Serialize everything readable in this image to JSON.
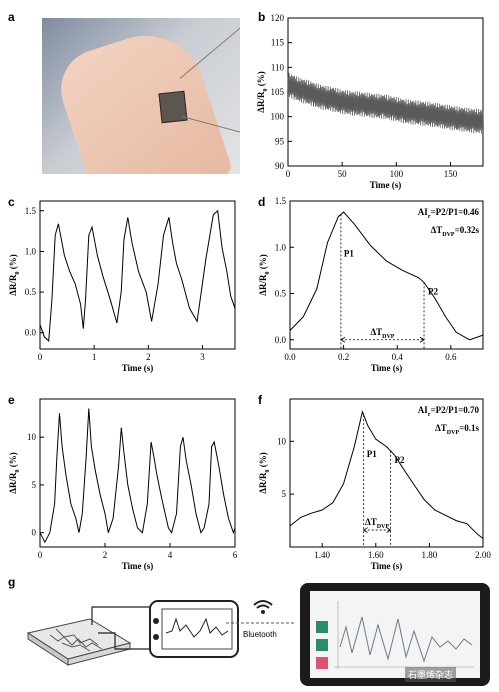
{
  "panel_labels": {
    "a": "a",
    "b": "b",
    "c": "c",
    "d": "d",
    "e": "e",
    "f": "f",
    "g": "g"
  },
  "ylabel_text": "ΔR/R",
  "ylabel_sub": "0",
  "ylabel_unit": " (%)",
  "bluetooth_label": "Bluetooth",
  "watermark": "石墨烯杂志",
  "colors": {
    "trace": "#000000",
    "trace_b": "#5a5a5a",
    "phone": "#1b1b1b",
    "app_green": "#2e8b6a",
    "app_pink": "#e05070"
  },
  "icons": [
    "wifi-icon"
  ],
  "chart_data": [
    {
      "id": "b",
      "type": "line",
      "title": "",
      "xlabel": "Time (s)",
      "xlim": [
        0,
        180
      ],
      "xticks": [
        0,
        50,
        100,
        150
      ],
      "ylim": [
        90,
        120
      ],
      "yticks": [
        90,
        95,
        100,
        105,
        110,
        115,
        120
      ],
      "series": [
        {
          "x": [
            0,
            10,
            20,
            30,
            40,
            50,
            60,
            70,
            80,
            90,
            100,
            110,
            120,
            130,
            140,
            150,
            160,
            170,
            180
          ],
          "y_center": [
            106.5,
            105.5,
            104.8,
            104.0,
            103.6,
            103.0,
            102.7,
            102.5,
            102.2,
            102.0,
            101.5,
            101.0,
            100.8,
            100.5,
            100.2,
            99.8,
            99.5,
            99.2,
            99.0
          ],
          "amplitude": 2.5
        }
      ]
    },
    {
      "id": "c",
      "type": "line",
      "title": "",
      "xlabel": "Time (s)",
      "xlim": [
        0,
        3.6
      ],
      "xticks": [
        0,
        1,
        2,
        3
      ],
      "ylim": [
        -0.2,
        1.62
      ],
      "yticks": [
        0.0,
        0.5,
        1.0,
        1.5
      ],
      "series": [
        {
          "x": [
            0,
            0.08,
            0.16,
            0.22,
            0.28,
            0.34,
            0.45,
            0.55,
            0.65,
            0.75,
            0.8,
            0.84,
            0.9,
            0.96,
            1.06,
            1.16,
            1.3,
            1.42,
            1.5,
            1.55,
            1.62,
            1.7,
            1.82,
            1.96,
            2.06,
            2.18,
            2.28,
            2.38,
            2.45,
            2.52,
            2.62,
            2.76,
            2.9,
            3.06,
            3.2,
            3.28,
            3.36,
            3.45,
            3.52,
            3.6
          ],
          "y": [
            0.1,
            -0.05,
            -0.1,
            0.4,
            1.2,
            1.34,
            0.95,
            0.75,
            0.6,
            0.35,
            0.05,
            0.4,
            1.2,
            1.3,
            0.95,
            0.7,
            0.4,
            0.12,
            0.5,
            1.15,
            1.42,
            1.1,
            0.75,
            0.5,
            0.14,
            0.6,
            1.2,
            1.42,
            1.1,
            0.85,
            0.65,
            0.3,
            0.14,
            0.9,
            1.45,
            1.5,
            1.05,
            0.75,
            0.45,
            0.3
          ]
        }
      ]
    },
    {
      "id": "d",
      "type": "line",
      "title": "",
      "xlabel": "Time (s)",
      "xlim": [
        0,
        0.72
      ],
      "xticks": [
        0.0,
        0.2,
        0.4,
        0.6
      ],
      "ylim": [
        -0.1,
        1.5
      ],
      "yticks": [
        0.0,
        0.5,
        1.0,
        1.5
      ],
      "series": [
        {
          "x": [
            0.0,
            0.05,
            0.1,
            0.14,
            0.18,
            0.2,
            0.24,
            0.3,
            0.36,
            0.42,
            0.48,
            0.5,
            0.54,
            0.58,
            0.62,
            0.67,
            0.72
          ],
          "y": [
            0.1,
            0.25,
            0.55,
            1.05,
            1.33,
            1.38,
            1.25,
            1.02,
            0.85,
            0.75,
            0.67,
            0.62,
            0.45,
            0.25,
            0.08,
            0.0,
            0.05
          ]
        }
      ],
      "annotations": {
        "air_label": "AI",
        "air_sub": "r",
        "air_value": "=P2/P1=0.46",
        "dt_label": "ΔT",
        "dt_sub": "DVP",
        "dt_value": "=0.32s",
        "p1": "P1",
        "p2": "P2",
        "p1_x": 0.19,
        "p2_x": 0.5,
        "arrow_y": 0.0,
        "dtvp_label": "ΔT",
        "dtvp_sub": "DVP"
      }
    },
    {
      "id": "e",
      "type": "line",
      "title": "",
      "xlabel": "Time (s)",
      "xlim": [
        0,
        6
      ],
      "xticks": [
        0,
        2,
        4,
        6
      ],
      "ylim": [
        -1.5,
        14
      ],
      "yticks": [
        0,
        5,
        10
      ],
      "series": [
        {
          "x": [
            0,
            0.15,
            0.3,
            0.45,
            0.52,
            0.6,
            0.68,
            0.8,
            0.95,
            1.1,
            1.2,
            1.3,
            1.42,
            1.5,
            1.58,
            1.7,
            1.85,
            2.0,
            2.1,
            2.25,
            2.42,
            2.5,
            2.58,
            2.7,
            2.85,
            3.0,
            3.15,
            3.3,
            3.42,
            3.5,
            3.6,
            3.75,
            3.95,
            4.05,
            4.2,
            4.32,
            4.4,
            4.5,
            4.65,
            4.8,
            4.95,
            5.05,
            5.2,
            5.28,
            5.36,
            5.5,
            5.65,
            5.8,
            5.95,
            6.0
          ],
          "y": [
            0,
            -1,
            0,
            3,
            8,
            12.5,
            9,
            6,
            3,
            1.5,
            0,
            2,
            8,
            13,
            9,
            6.5,
            4,
            2,
            0,
            1.5,
            7,
            11,
            8.5,
            5,
            2.5,
            0.5,
            0,
            3,
            9.5,
            8,
            6,
            3.5,
            0.5,
            0,
            2,
            9,
            10,
            7.5,
            5,
            2,
            0,
            0.5,
            3,
            9,
            9.5,
            7,
            4,
            1.5,
            0,
            0.5
          ]
        }
      ]
    },
    {
      "id": "f",
      "type": "line",
      "title": "",
      "xlabel": "Time (s)",
      "xlim": [
        1.28,
        2.0
      ],
      "xticks": [
        1.4,
        1.6,
        1.8,
        2.0
      ],
      "ylim": [
        0,
        14
      ],
      "yticks": [
        5,
        10
      ],
      "series": [
        {
          "x": [
            1.28,
            1.32,
            1.36,
            1.4,
            1.44,
            1.48,
            1.52,
            1.55,
            1.57,
            1.6,
            1.64,
            1.67,
            1.7,
            1.74,
            1.78,
            1.82,
            1.86,
            1.9,
            1.94,
            1.98,
            2.0
          ],
          "y": [
            2.0,
            2.8,
            3.2,
            3.5,
            4.2,
            6.0,
            9.5,
            12.8,
            11.5,
            10.2,
            9.5,
            8.7,
            7.5,
            6.0,
            4.5,
            3.5,
            3.0,
            2.5,
            2.2,
            1.2,
            0.8
          ]
        }
      ],
      "annotations": {
        "air_label": "AI",
        "air_sub": "r",
        "air_value": "=P2/P1=0.70",
        "dt_label": "ΔT",
        "dt_sub": "DVP",
        "dt_value": "=0.1s",
        "p1": "P1",
        "p2": "P2",
        "p1_x": 1.555,
        "p2_x": 1.655,
        "arrow_y": 1.6,
        "dtvp_label": "ΔT",
        "dtvp_sub": "DVP"
      }
    }
  ]
}
